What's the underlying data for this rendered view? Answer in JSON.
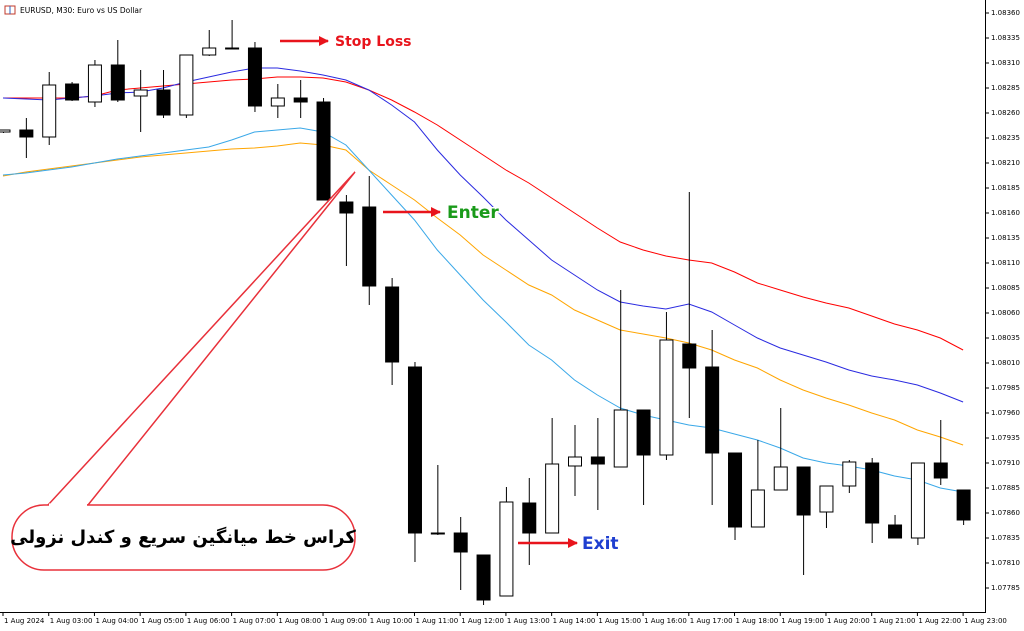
{
  "chart_data": {
    "type": "candlestick",
    "title": "EURUSD, M30:  Euro vs US Dollar",
    "categories": [
      "1 Aug 2024",
      null,
      "1 Aug 03:00",
      null,
      "1 Aug 04:00",
      null,
      "1 Aug 05:00",
      null,
      "1 Aug 06:00",
      null,
      "1 Aug 07:00",
      null,
      "1 Aug 08:00",
      null,
      "1 Aug 09:00",
      null,
      "1 Aug 10:00",
      null,
      "1 Aug 11:00",
      null,
      "1 Aug 12:00",
      null,
      "1 Aug 13:00",
      null,
      "1 Aug 14:00",
      null,
      "1 Aug 15:00",
      null,
      "1 Aug 16:00",
      null,
      "1 Aug 17:00",
      null,
      "1 Aug 18:00",
      null,
      "1 Aug 19:00",
      null,
      "1 Aug 20:00",
      null,
      "1 Aug 21:00",
      null,
      "1 Aug 22:00",
      null,
      "1 Aug 23:00"
    ],
    "open": [
      1.08241,
      1.08243,
      1.08236,
      1.08289,
      1.08271,
      1.08308,
      1.08277,
      1.08283,
      1.08258,
      1.08318,
      1.08325,
      1.08325,
      1.08267,
      1.08275,
      1.08271,
      1.08171,
      1.08166,
      1.08086,
      1.08006,
      1.0784,
      1.0784,
      1.07818,
      1.07777,
      1.0787,
      1.0784,
      1.07907,
      1.07916,
      1.07906,
      1.07963,
      1.07918,
      1.08029,
      1.08006,
      1.0792,
      1.07846,
      1.07883,
      1.07906,
      1.07861,
      1.07887,
      1.0791,
      1.07848,
      1.07835,
      1.0791,
      1.07883
    ],
    "high": [
      1.08243,
      1.08255,
      1.08301,
      1.08291,
      1.08313,
      1.08333,
      1.08303,
      1.08303,
      1.08318,
      1.08343,
      1.08353,
      1.08331,
      1.08289,
      1.08293,
      1.08275,
      1.08178,
      1.08197,
      1.08095,
      1.08011,
      1.07908,
      1.07856,
      1.07818,
      1.07886,
      1.07895,
      1.07955,
      1.07948,
      1.07955,
      1.08083,
      1.07963,
      1.08061,
      1.08181,
      1.08043,
      1.0792,
      1.07933,
      1.07965,
      1.07906,
      1.07887,
      1.07913,
      1.07915,
      1.07858,
      1.0791,
      1.07953,
      1.07883
    ],
    "low": [
      1.0824,
      1.08215,
      1.08228,
      1.08272,
      1.08266,
      1.08271,
      1.08241,
      1.08255,
      1.08255,
      1.08317,
      1.08324,
      1.08261,
      1.08255,
      1.08255,
      1.08173,
      1.08107,
      1.08068,
      1.07988,
      1.07811,
      1.07838,
      1.07783,
      1.07768,
      1.07777,
      1.07808,
      1.0784,
      1.07877,
      1.07863,
      1.07906,
      1.07868,
      1.07913,
      1.07955,
      1.07868,
      1.07833,
      1.07846,
      1.07883,
      1.07798,
      1.07845,
      1.0788,
      1.0783,
      1.07835,
      1.07828,
      1.07888,
      1.07848
    ],
    "close": [
      1.08243,
      1.08236,
      1.08288,
      1.08273,
      1.08308,
      1.08273,
      1.08283,
      1.08258,
      1.08318,
      1.08325,
      1.08325,
      1.08267,
      1.08275,
      1.08271,
      1.08173,
      1.0816,
      1.08087,
      1.08011,
      1.0784,
      1.0784,
      1.07821,
      1.07773,
      1.07871,
      1.0784,
      1.07909,
      1.07916,
      1.07909,
      1.07963,
      1.07918,
      1.08033,
      1.08005,
      1.0792,
      1.07846,
      1.07883,
      1.07906,
      1.07858,
      1.07887,
      1.07911,
      1.0785,
      1.07835,
      1.0791,
      1.07895,
      1.07853
    ],
    "series": [
      {
        "color": "#ff0000",
        "values": [
          1.08275,
          1.08275,
          1.08275,
          1.08275,
          1.08277,
          1.08283,
          1.08285,
          1.08287,
          1.08289,
          1.08291,
          1.08293,
          1.08294,
          1.08296,
          1.08296,
          1.08295,
          1.08291,
          1.08283,
          1.08273,
          1.08261,
          1.08248,
          1.08233,
          1.08218,
          1.08203,
          1.0819,
          1.08175,
          1.0816,
          1.08145,
          1.08131,
          1.08123,
          1.08117,
          1.08113,
          1.0811,
          1.08101,
          1.0809,
          1.08083,
          1.08076,
          1.0807,
          1.08065,
          1.08057,
          1.08049,
          1.08043,
          1.08035,
          1.08023
        ]
      },
      {
        "color": "#2a2ae0",
        "values": [
          1.08275,
          1.08274,
          1.08273,
          1.08275,
          1.08277,
          1.0828,
          1.08281,
          1.08285,
          1.08291,
          1.08296,
          1.08301,
          1.08305,
          1.08305,
          1.08302,
          1.08298,
          1.08293,
          1.08283,
          1.08268,
          1.08251,
          1.08223,
          1.08198,
          1.08176,
          1.08153,
          1.08133,
          1.08113,
          1.08098,
          1.08083,
          1.08071,
          1.08067,
          1.08064,
          1.08069,
          1.08061,
          1.08048,
          1.08035,
          1.08025,
          1.08018,
          1.08011,
          1.08003,
          1.07997,
          1.07993,
          1.07988,
          1.0798,
          1.07971
        ]
      },
      {
        "color": "#ffa500",
        "values": [
          1.08197,
          1.08201,
          1.08204,
          1.08207,
          1.0821,
          1.08213,
          1.08216,
          1.08218,
          1.0822,
          1.08222,
          1.08224,
          1.08225,
          1.08227,
          1.0823,
          1.08228,
          1.08223,
          1.08203,
          1.08188,
          1.08173,
          1.08155,
          1.08138,
          1.08118,
          1.08103,
          1.08088,
          1.08078,
          1.08063,
          1.08053,
          1.08043,
          1.08039,
          1.08035,
          1.0803,
          1.08023,
          1.08013,
          1.08005,
          1.07993,
          1.07983,
          1.07975,
          1.07968,
          1.0796,
          1.07953,
          1.07943,
          1.07936,
          1.07928
        ]
      },
      {
        "color": "#3aa8e8",
        "values": [
          1.08198,
          1.082,
          1.08203,
          1.08206,
          1.0821,
          1.08214,
          1.08217,
          1.0822,
          1.08223,
          1.08226,
          1.08233,
          1.08241,
          1.08243,
          1.08245,
          1.08241,
          1.08228,
          1.08203,
          1.08178,
          1.08153,
          1.08123,
          1.08098,
          1.08073,
          1.08051,
          1.08028,
          1.08013,
          1.07993,
          1.07978,
          1.07965,
          1.07958,
          1.07953,
          1.07948,
          1.07945,
          1.07939,
          1.07933,
          1.07925,
          1.07915,
          1.0791,
          1.07907,
          1.07903,
          1.07897,
          1.07893,
          1.07885,
          1.07881
        ]
      }
    ],
    "ylim": [
      1.07768,
      1.08373
    ],
    "yticks": [
      {
        "value": 1.0836,
        "label": "1.08360"
      },
      {
        "value": 1.08335,
        "label": "1.08335"
      },
      {
        "value": 1.0831,
        "label": "1.08310"
      },
      {
        "value": 1.08285,
        "label": "1.08285"
      },
      {
        "value": 1.0826,
        "label": "1.08260"
      },
      {
        "value": 1.08235,
        "label": "1.08235"
      },
      {
        "value": 1.0821,
        "label": "1.08210"
      },
      {
        "value": 1.08185,
        "label": "1.08185"
      },
      {
        "value": 1.0816,
        "label": "1.08160"
      },
      {
        "value": 1.08135,
        "label": "1.08135"
      },
      {
        "value": 1.0811,
        "label": "1.08110"
      },
      {
        "value": 1.08085,
        "label": "1.08085"
      },
      {
        "value": 1.0806,
        "label": "1.08060"
      },
      {
        "value": 1.08035,
        "label": "1.08035"
      },
      {
        "value": 1.0801,
        "label": "1.08010"
      },
      {
        "value": 1.07985,
        "label": "1.07985"
      },
      {
        "value": 1.0796,
        "label": "1.07960"
      },
      {
        "value": 1.07935,
        "label": "1.07935"
      },
      {
        "value": 1.0791,
        "label": "1.07910"
      },
      {
        "value": 1.07885,
        "label": "1.07885"
      },
      {
        "value": 1.0786,
        "label": "1.07860"
      },
      {
        "value": 1.07835,
        "label": "1.07835"
      },
      {
        "value": 1.0781,
        "label": "1.07810"
      },
      {
        "value": 1.07785,
        "label": "1.07785"
      }
    ],
    "annotations": [
      "Stop Loss",
      "Enter",
      "Exit",
      "کراس خط میانگین سریع و کندل نزولی"
    ]
  }
}
